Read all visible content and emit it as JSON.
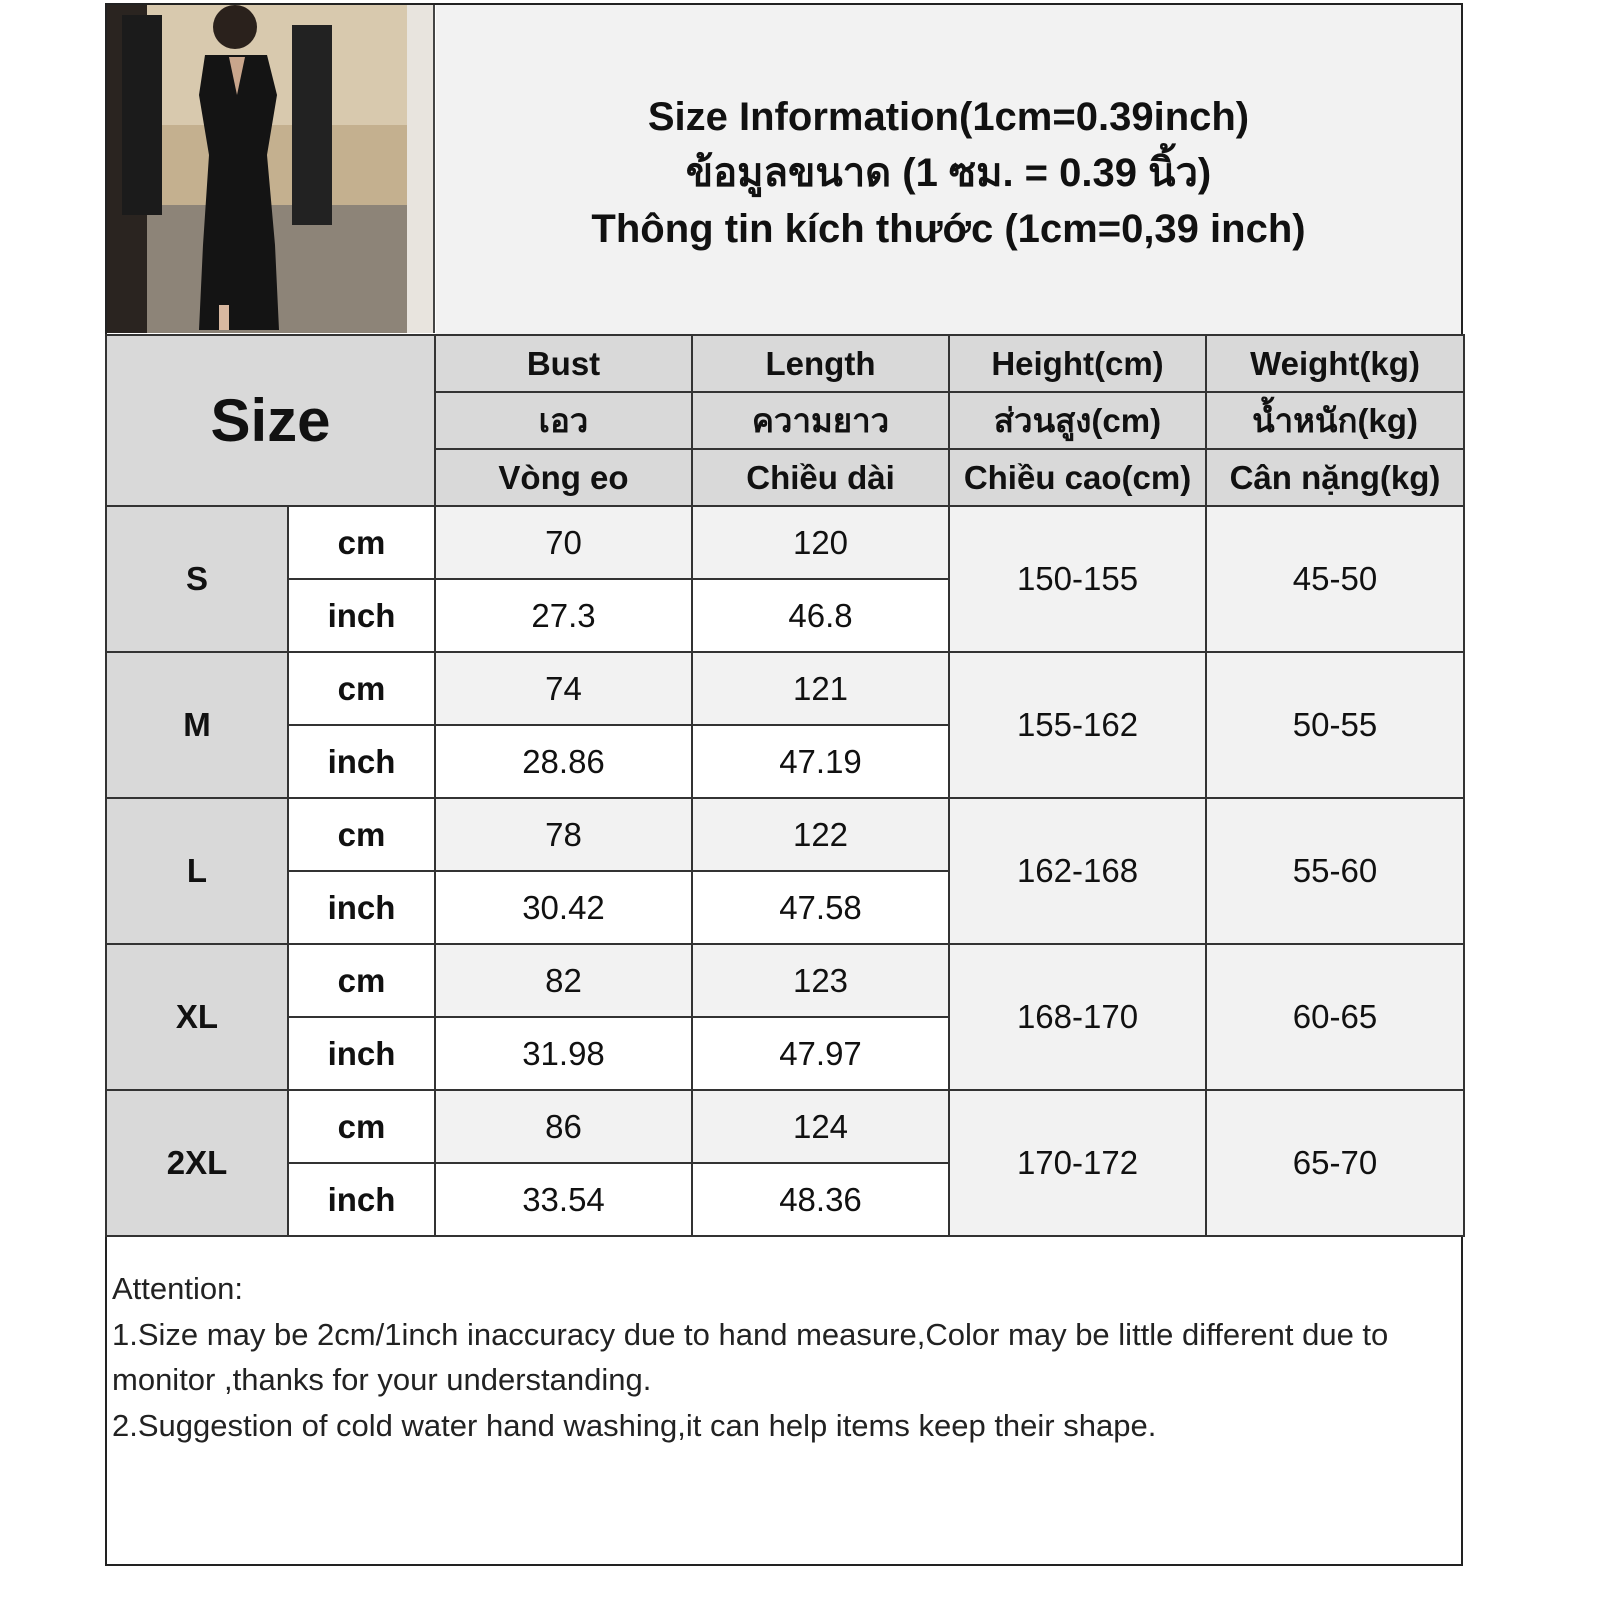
{
  "title": {
    "line1": "Size Information(1cm=0.39inch)",
    "line2": "ข้อมูลขนาด (1 ซม. = 0.39 นิ้ว)",
    "line3": "Thông tin kích thước (1cm=0,39 inch)"
  },
  "table": {
    "size_header": "Size",
    "columns": [
      {
        "en": "Bust",
        "th": "เอว",
        "vi": "Vòng eo"
      },
      {
        "en": "Length",
        "th": "ความยาว",
        "vi": "Chiều dài"
      },
      {
        "en": "Height(cm)",
        "th": "ส่วนสูง(cm)",
        "vi": "Chiều cao(cm)"
      },
      {
        "en": "Weight(kg)",
        "th": "น้ำหนัก(kg)",
        "vi": "Cân nặng(kg)"
      }
    ],
    "unit_cm": "cm",
    "unit_inch": "inch",
    "rows": [
      {
        "size": "S",
        "bust_cm": "70",
        "length_cm": "120",
        "bust_inch": "27.3",
        "length_inch": "46.8",
        "height": "150-155",
        "weight": "45-50"
      },
      {
        "size": "M",
        "bust_cm": "74",
        "length_cm": "121",
        "bust_inch": "28.86",
        "length_inch": "47.19",
        "height": "155-162",
        "weight": "50-55"
      },
      {
        "size": "L",
        "bust_cm": "78",
        "length_cm": "122",
        "bust_inch": "30.42",
        "length_inch": "47.58",
        "height": "162-168",
        "weight": "55-60"
      },
      {
        "size": "XL",
        "bust_cm": "82",
        "length_cm": "123",
        "bust_inch": "31.98",
        "length_inch": "47.97",
        "height": "168-170",
        "weight": "60-65"
      },
      {
        "size": "2XL",
        "bust_cm": "86",
        "length_cm": "124",
        "bust_inch": "33.54",
        "length_inch": "48.36",
        "height": "170-172",
        "weight": "65-70"
      }
    ]
  },
  "notes": {
    "heading": "Attention:",
    "line1": "1.Size may be 2cm/1inch inaccuracy due to hand measure,Color may be little different due to monitor ,thanks for your understanding.",
    "line2": "2.Suggestion of cold water hand washing,it can help items keep their shape."
  }
}
